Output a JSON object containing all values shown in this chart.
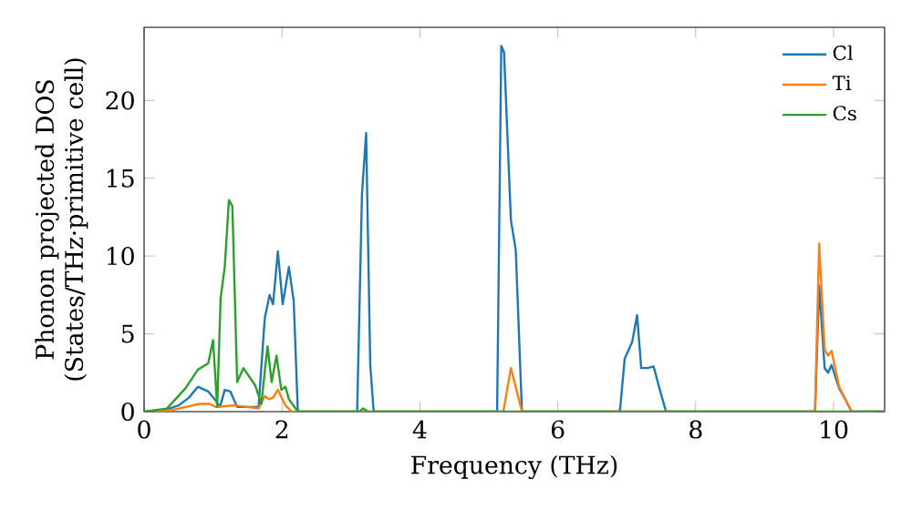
{
  "chart_data": {
    "type": "line",
    "xlabel": "Frequency (THz)",
    "ylabel": "Phonon projected DOS (States/THz·primitive cell)",
    "xlim": [
      0,
      10.74
    ],
    "ylim": [
      0,
      24.7
    ],
    "xticks": [
      0,
      2,
      4,
      6,
      8,
      10
    ],
    "yticks": [
      0,
      5,
      10,
      15,
      20
    ],
    "legend": "top right",
    "series": [
      {
        "name": "Cl",
        "color": "#1f77b4",
        "x": [
          0,
          0.3,
          0.5,
          0.65,
          0.78,
          0.93,
          1.04,
          1.1,
          1.17,
          1.25,
          1.35,
          1.5,
          1.66,
          1.75,
          1.82,
          1.87,
          1.94,
          2.01,
          2.1,
          2.17,
          2.23,
          3.09,
          3.16,
          3.22,
          3.28,
          3.33,
          5.12,
          5.18,
          5.22,
          5.32,
          5.39,
          5.48,
          6.9,
          6.97,
          7.08,
          7.15,
          7.21,
          7.3,
          7.39,
          7.48,
          7.57,
          9.73,
          9.79,
          9.87,
          9.92,
          9.97,
          10.08,
          10.18,
          10.26,
          10.74
        ],
        "values": [
          0,
          0.1,
          0.4,
          0.9,
          1.6,
          1.3,
          0.7,
          0.3,
          1.4,
          1.3,
          0.3,
          0.3,
          0.3,
          6.0,
          7.5,
          6.9,
          10.3,
          6.9,
          9.3,
          7.1,
          0,
          0,
          14.0,
          17.9,
          3.0,
          0,
          0,
          23.5,
          23.1,
          12.3,
          10.4,
          0,
          0,
          3.4,
          4.5,
          6.2,
          2.8,
          2.8,
          2.9,
          1.4,
          0,
          0,
          8.1,
          2.8,
          2.5,
          3.0,
          1.5,
          0.7,
          0,
          0
        ]
      },
      {
        "name": "Ti",
        "color": "#ff7f0e",
        "x": [
          0,
          0.4,
          0.6,
          0.8,
          0.95,
          1.04,
          1.3,
          1.5,
          1.66,
          1.75,
          1.81,
          1.87,
          1.94,
          2.05,
          2.14,
          5.21,
          5.32,
          5.48,
          9.73,
          9.79,
          9.87,
          9.92,
          9.97,
          10.08,
          10.26,
          10.74
        ],
        "values": [
          0,
          0.1,
          0.3,
          0.5,
          0.5,
          0.3,
          0.4,
          0.3,
          0.2,
          1.0,
          0.8,
          0.9,
          1.4,
          0.4,
          0,
          0,
          2.8,
          0,
          0,
          10.8,
          4.0,
          3.6,
          3.9,
          1.6,
          0,
          0
        ]
      },
      {
        "name": "Cs",
        "color": "#2ca02c",
        "x": [
          0,
          0.33,
          0.6,
          0.78,
          0.93,
          1.0,
          1.06,
          1.11,
          1.17,
          1.23,
          1.28,
          1.35,
          1.44,
          1.61,
          1.7,
          1.79,
          1.85,
          1.92,
          1.99,
          2.05,
          2.1,
          2.23,
          3.12,
          3.18,
          3.24,
          10.74
        ],
        "values": [
          0,
          0.2,
          1.5,
          2.7,
          3.1,
          4.6,
          0.3,
          7.3,
          9.3,
          13.6,
          13.2,
          1.9,
          2.8,
          1.7,
          0.5,
          4.2,
          1.9,
          3.6,
          1.4,
          1.6,
          0.8,
          0,
          0,
          0.2,
          0,
          0
        ]
      }
    ]
  }
}
